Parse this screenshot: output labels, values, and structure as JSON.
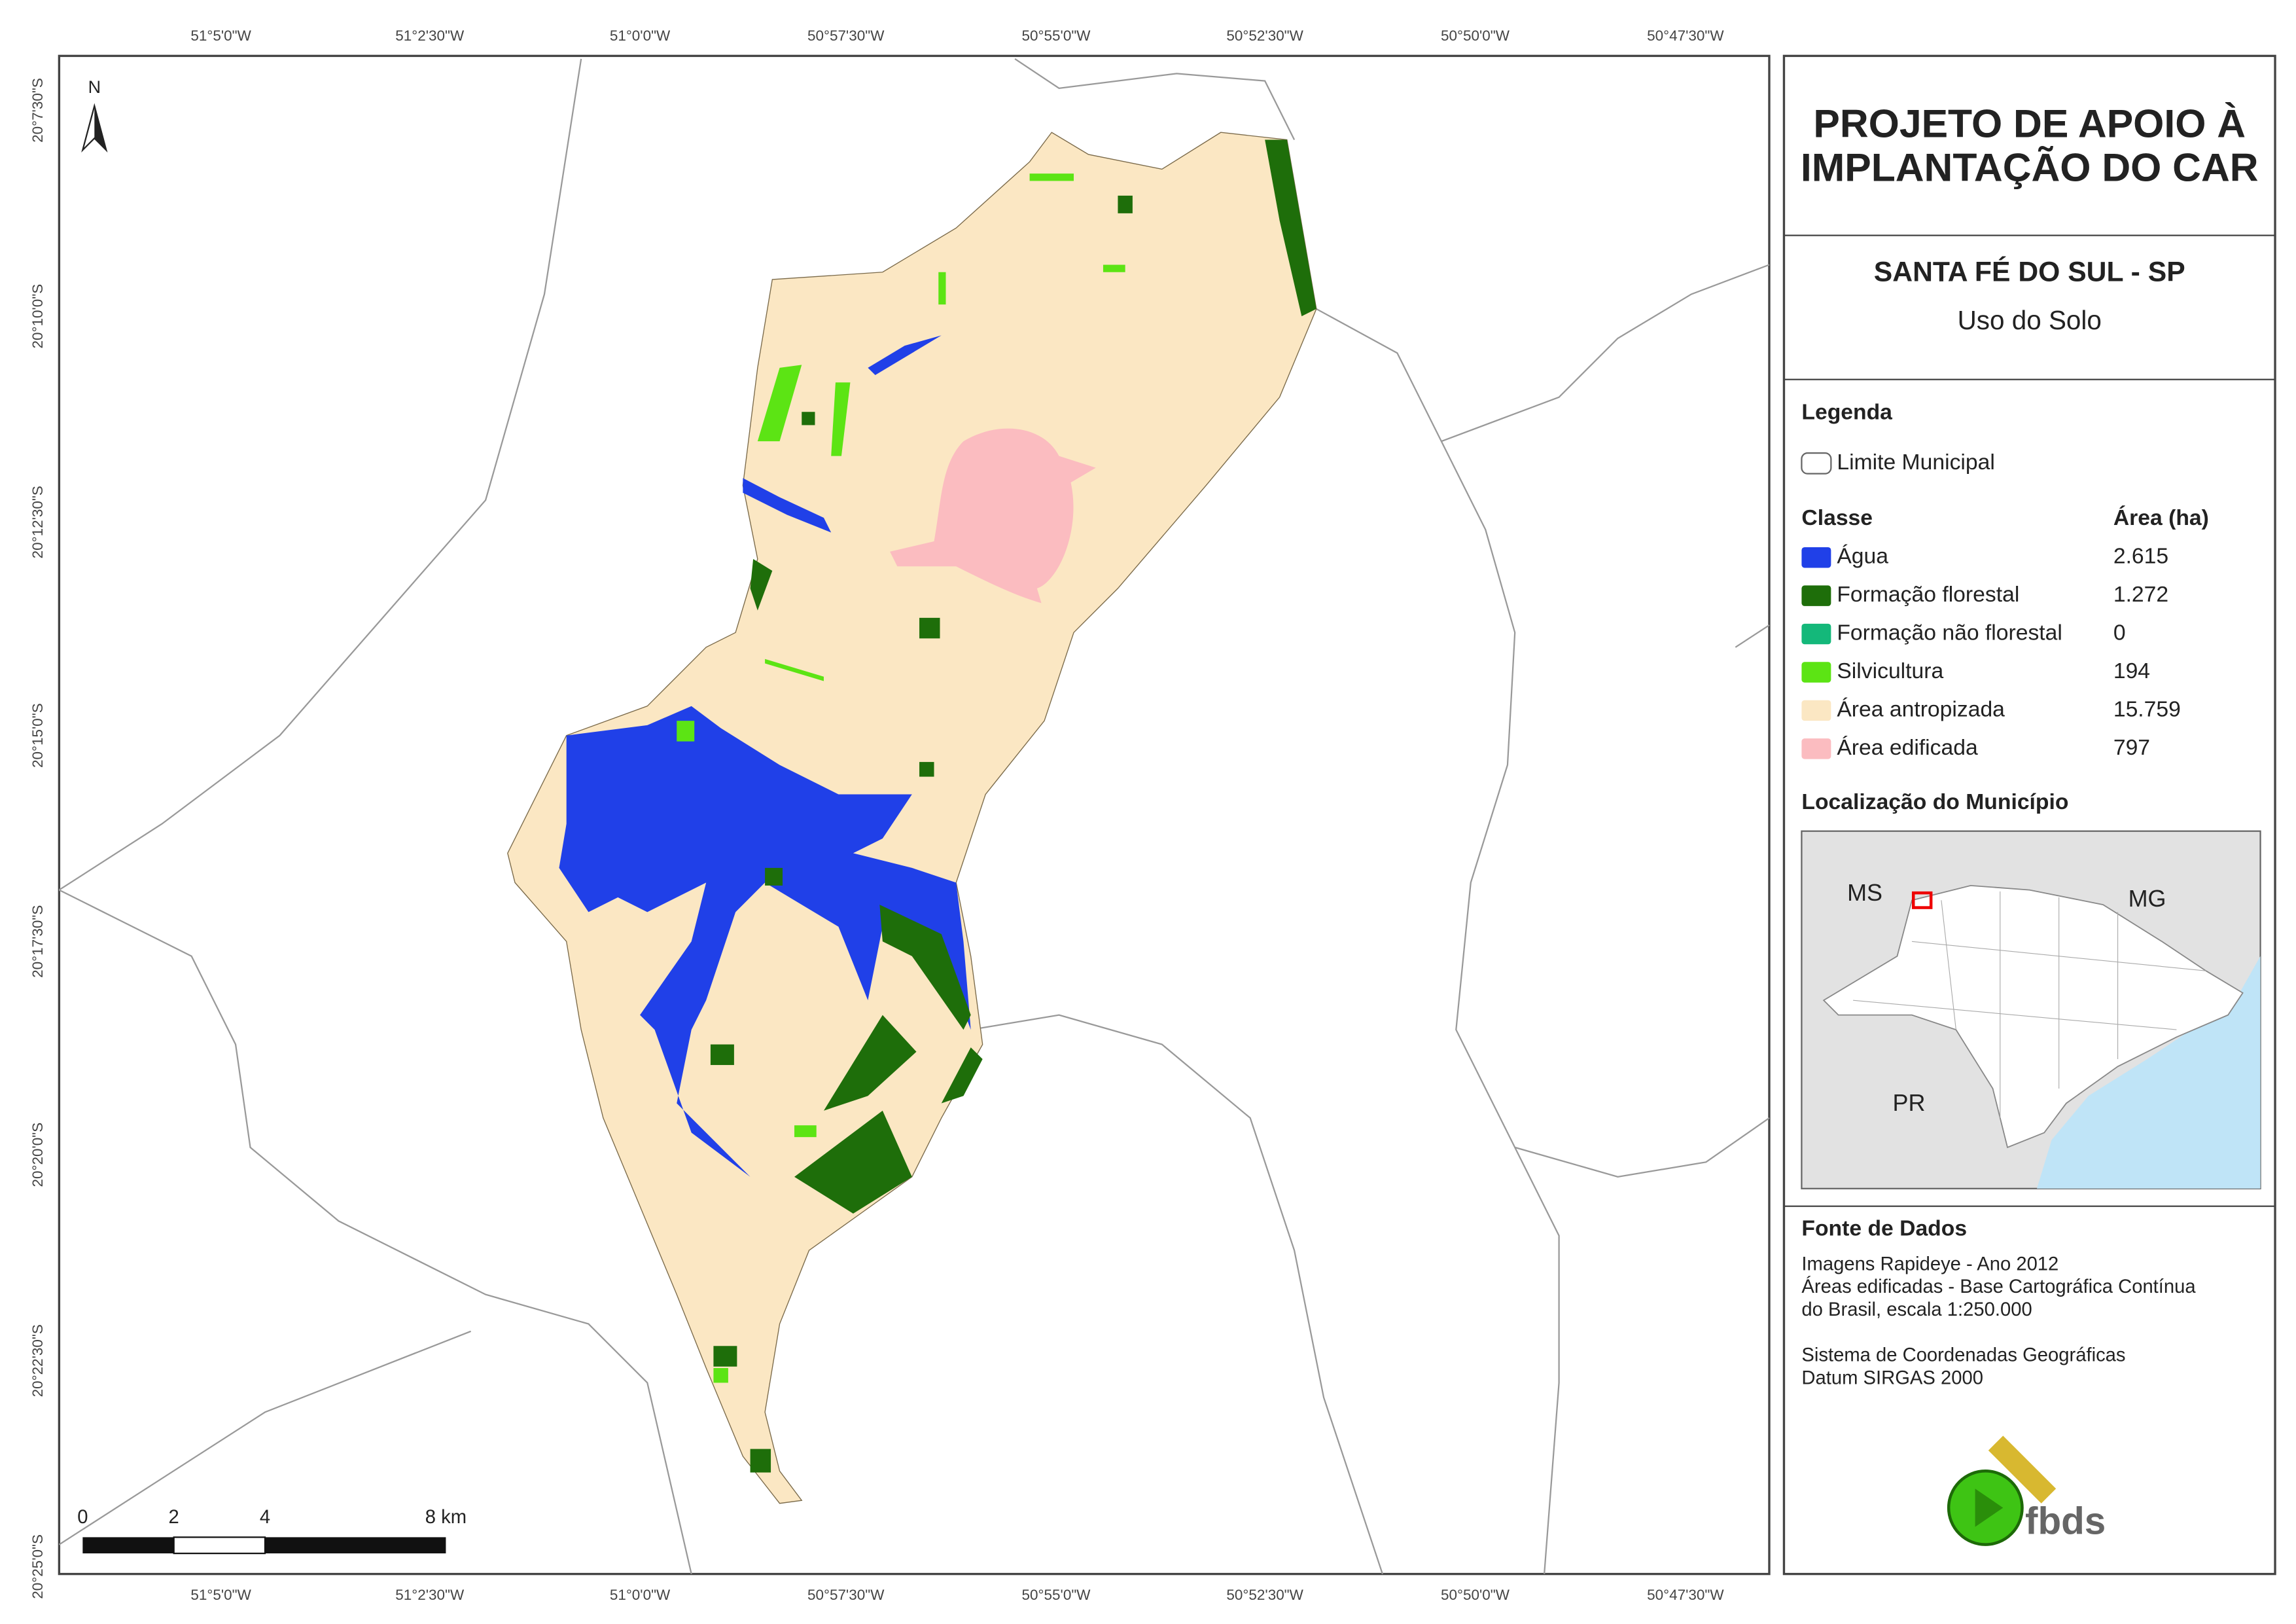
{
  "map": {
    "lon_labels": [
      "51°5'0\"W",
      "51°2'30\"W",
      "51°0'0\"W",
      "50°57'30\"W",
      "50°55'0\"W",
      "50°52'30\"W",
      "50°50'0\"W",
      "50°47'30\"W"
    ],
    "lat_labels": [
      "20°7'30\"S",
      "20°10'0\"S",
      "20°12'30\"S",
      "20°15'0\"S",
      "20°17'30\"S",
      "20°20'0\"S",
      "20°22'30\"S",
      "20°25'0\"S"
    ],
    "north": "N",
    "scale_labels": [
      "0",
      "2",
      "4",
      "8 km"
    ]
  },
  "panel": {
    "title": [
      "PROJETO DE APOIO À",
      "IMPLANTAÇÃO DO CAR"
    ],
    "municipality": "SANTA FÉ DO SUL - SP",
    "subtitle": "Uso do Solo",
    "legend_title": "Legenda",
    "boundary": "Limite Municipal",
    "class_header": "Classe",
    "area_header": "Área (ha)",
    "classes": [
      {
        "name": "Água",
        "color": "#2040e8",
        "area": "2.615"
      },
      {
        "name": "Formação florestal",
        "color": "#1e6e0a",
        "area": "1.272"
      },
      {
        "name": "Formação não florestal",
        "color": "#14b87a",
        "area": "0"
      },
      {
        "name": "Silvicultura",
        "color": "#5ce414",
        "area": "194"
      },
      {
        "name": "Área antropizada",
        "color": "#fbe7c3",
        "area": "15.759"
      },
      {
        "name": "Área edificada",
        "color": "#fbbcc0",
        "area": "797"
      }
    ],
    "location_title": "Localização do Município",
    "states": [
      "MS",
      "MG",
      "PR"
    ],
    "sources_title": "Fonte de Dados",
    "sources": [
      "Imagens Rapideye - Ano 2012",
      "Áreas edificadas - Base Cartográfica Contínua",
      "do Brasil, escala 1:250.000",
      "",
      "Sistema de Coordenadas Geográficas",
      "Datum SIRGAS 2000"
    ],
    "logo": "fbds"
  }
}
